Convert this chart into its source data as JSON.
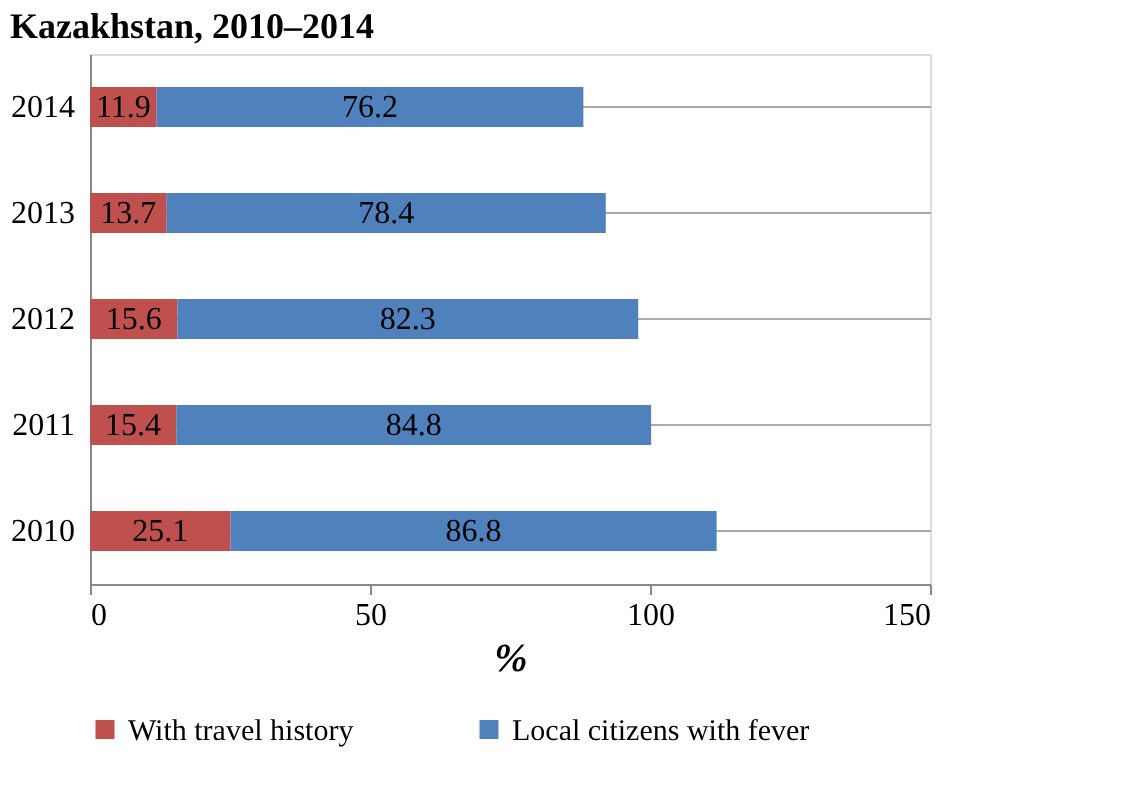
{
  "chart_data": {
    "type": "bar",
    "title": "Kazakhstan, 2010–2014",
    "orientation": "horizontal",
    "stacked": true,
    "categories": [
      "2014",
      "2013",
      "2012",
      "2011",
      "2010"
    ],
    "series": [
      {
        "name": "With travel history",
        "color": "#c0504d",
        "values": [
          11.9,
          13.7,
          15.6,
          15.4,
          25.1
        ]
      },
      {
        "name": "Local citizens with fever",
        "color": "#4f81bd",
        "values": [
          76.2,
          78.4,
          82.3,
          84.8,
          86.8
        ]
      }
    ],
    "xlabel": "%",
    "xlim": [
      0,
      150
    ],
    "xticks": [
      0,
      50,
      100,
      150
    ],
    "grid": "y",
    "legend": "bottom",
    "data_labels": true
  }
}
